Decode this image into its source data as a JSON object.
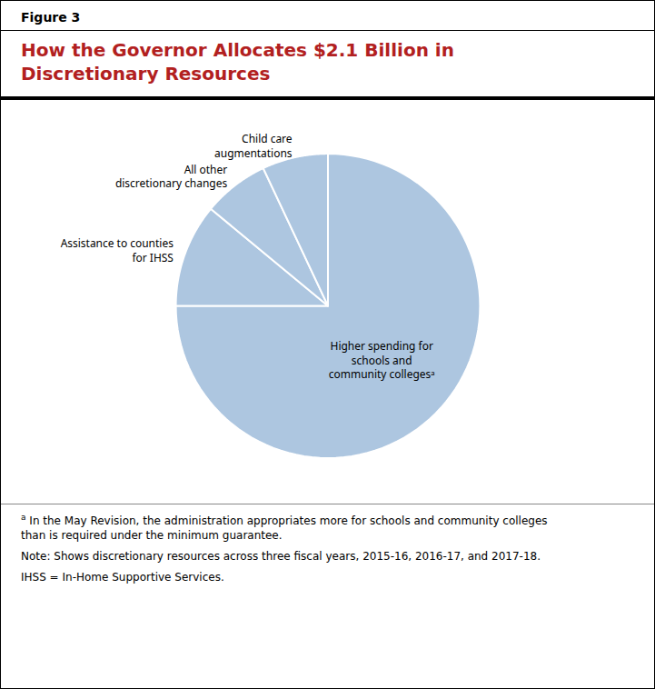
{
  "chart_data": {
    "type": "pie",
    "subtitle": "Figure 3",
    "title": "How the Governor Allocates $2.1 Billion in\nDiscretionary Resources",
    "categories": [
      "Higher spending for\nschools and\ncommunity collegesᵃ",
      "Assistance to counties\nfor IHSS",
      "All other\ndiscretionary changes",
      "Child care\naugmentations"
    ],
    "values": [
      75,
      11,
      7,
      7
    ],
    "color": "#adc6e0",
    "annotations": [
      "a",
      "In the May Revision, the administration appropriates more for schools and community colleges\nthan is required under the minimum guarantee.",
      "Note: Shows discretionary resources across three fiscal years, 2015-16, 2016-17, and 2017-18.",
      "IHSS = In-Home Supportive Services."
    ]
  }
}
